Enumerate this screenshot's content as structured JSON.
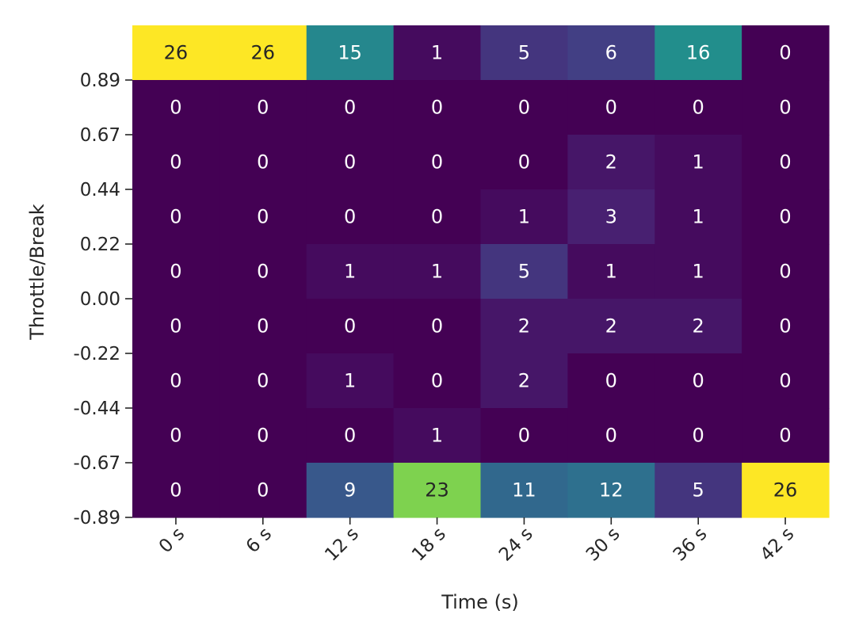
{
  "chart_data": {
    "type": "heatmap",
    "title": "",
    "xlabel": "Time (s)",
    "ylabel": "Throttle/Break",
    "x_tick_labels": [
      "0 s",
      "6 s",
      "12 s",
      "18 s",
      "24 s",
      "30 s",
      "36 s",
      "42 s"
    ],
    "y_tick_labels": [
      "0.89",
      "0.67",
      "0.44",
      "0.22",
      "0.00",
      "-0.22",
      "-0.44",
      "-0.67",
      "-0.89"
    ],
    "colormap": "viridis",
    "color_range": [
      0,
      26
    ],
    "colorbar": false,
    "grid": false,
    "values": [
      [
        26,
        26,
        15,
        1,
        5,
        6,
        16,
        0
      ],
      [
        0,
        0,
        0,
        0,
        0,
        0,
        0,
        0
      ],
      [
        0,
        0,
        0,
        0,
        0,
        2,
        1,
        0
      ],
      [
        0,
        0,
        0,
        0,
        1,
        3,
        1,
        0
      ],
      [
        0,
        0,
        1,
        1,
        5,
        1,
        1,
        0
      ],
      [
        0,
        0,
        0,
        0,
        2,
        2,
        2,
        0
      ],
      [
        0,
        0,
        1,
        0,
        2,
        0,
        0,
        0
      ],
      [
        0,
        0,
        0,
        1,
        0,
        0,
        0,
        0
      ],
      [
        0,
        0,
        9,
        23,
        11,
        12,
        5,
        26
      ]
    ]
  }
}
